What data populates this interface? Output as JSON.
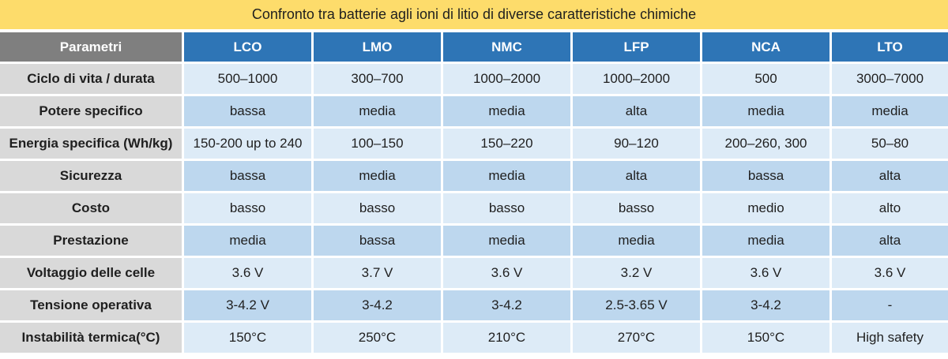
{
  "title": "Confronto tra batterie agli ioni di litio di diverse caratteristiche chimiche",
  "header": {
    "param": "Parametri",
    "columns": [
      "LCO",
      "LMO",
      "NMC",
      "LFP",
      "NCA",
      "LTO"
    ]
  },
  "rows": [
    {
      "label": "Ciclo di vita / durata",
      "values": [
        "500–1000",
        "300–700",
        "1000–2000",
        "1000–2000",
        "500",
        "3000–7000"
      ]
    },
    {
      "label": "Potere specifico",
      "values": [
        "bassa",
        "media",
        "media",
        "alta",
        "media",
        "media"
      ]
    },
    {
      "label": "Energia specifica (Wh/kg)",
      "values": [
        "150-200 up to 240",
        "100–150",
        "150–220",
        "90–120",
        "200–260, 300",
        "50–80"
      ]
    },
    {
      "label": "Sicurezza",
      "values": [
        "bassa",
        "media",
        "media",
        "alta",
        "bassa",
        "alta"
      ]
    },
    {
      "label": "Costo",
      "values": [
        "basso",
        "basso",
        "basso",
        "basso",
        "medio",
        "alto"
      ]
    },
    {
      "label": "Prestazione",
      "values": [
        "media",
        "bassa",
        "media",
        "media",
        "media",
        "alta"
      ]
    },
    {
      "label": "Voltaggio delle celle",
      "values": [
        "3.6 V",
        "3.7 V",
        "3.6 V",
        "3.2 V",
        "3.6 V",
        "3.6 V"
      ]
    },
    {
      "label": "Tensione operativa",
      "values": [
        "3-4.2 V",
        "3-4.2",
        "3-4.2",
        "2.5-3.65 V",
        "3-4.2",
        "-"
      ]
    },
    {
      "label": "Instabilità termica(°C)",
      "values": [
        "150°C",
        "250°C",
        "210°C",
        "270°C",
        "150°C",
        "High safety"
      ]
    }
  ]
}
